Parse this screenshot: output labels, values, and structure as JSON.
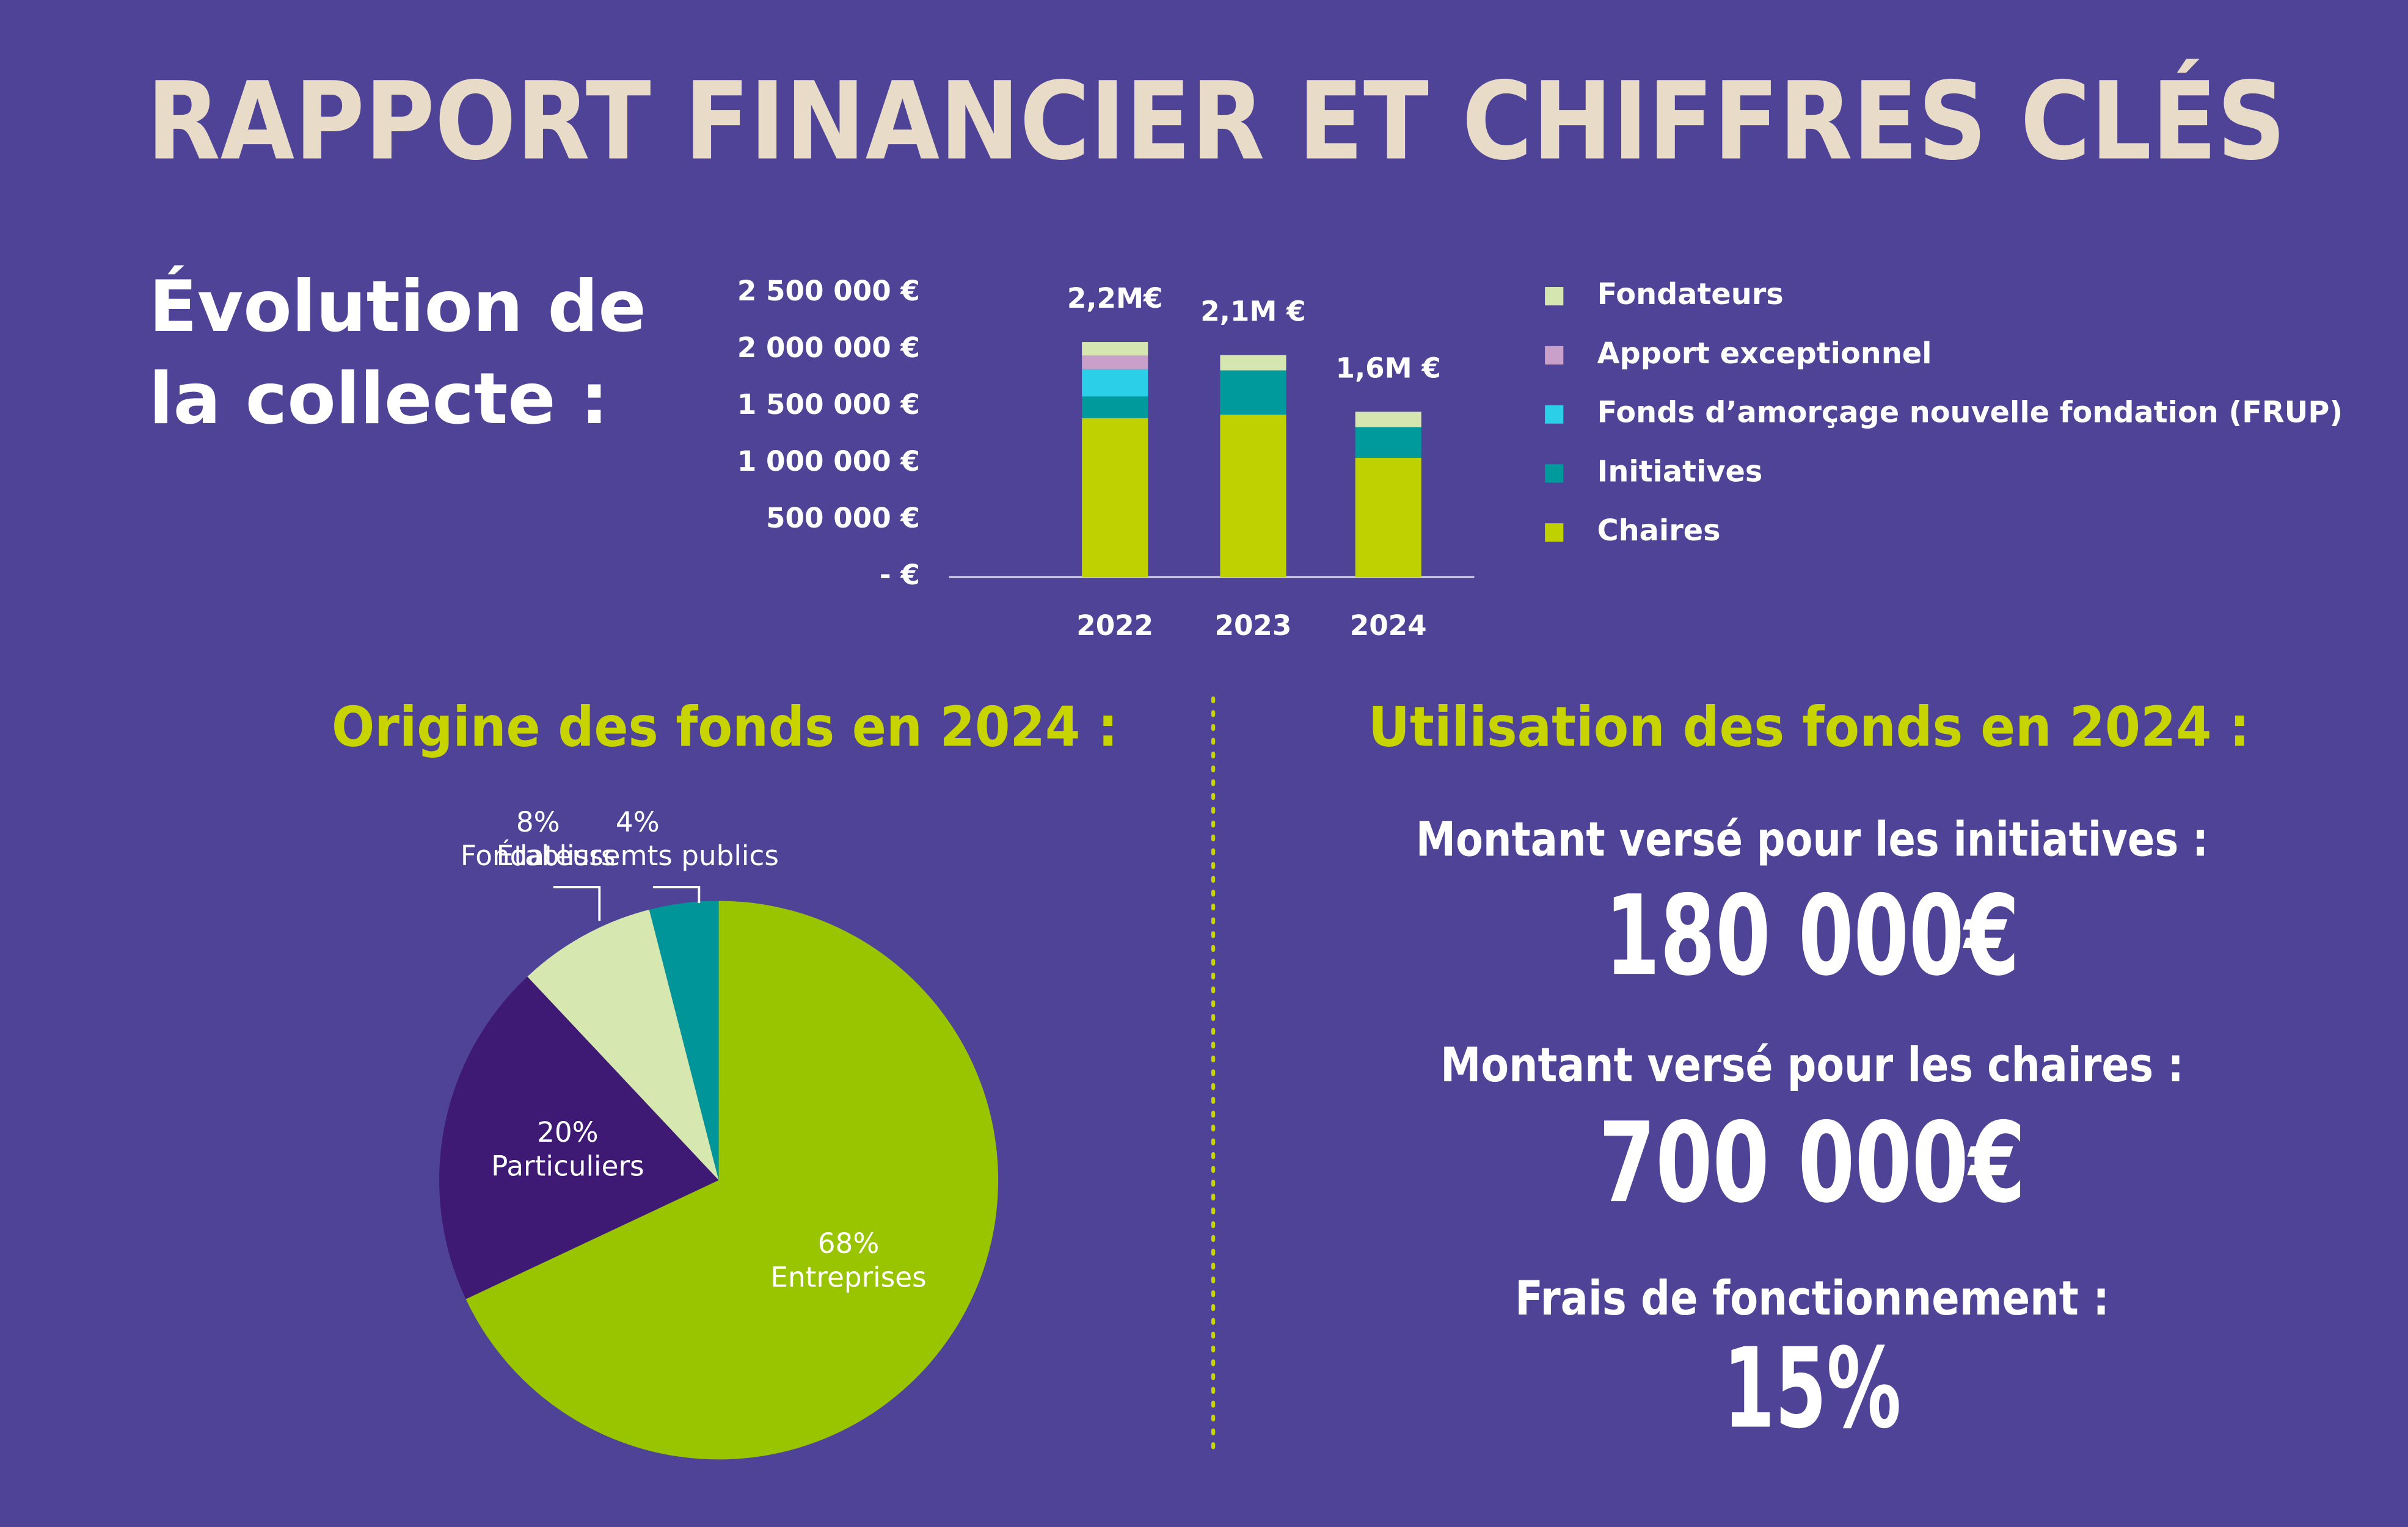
{
  "title": "RAPPORT FINANCIER ET CHIFFRES CLÉS",
  "chart_data": [
    {
      "type": "stacked-bar",
      "title": [
        "Évolution de",
        "la collecte :"
      ],
      "categories": [
        "2022",
        "2023",
        "2024"
      ],
      "series": [
        {
          "name": "Chaires",
          "color": "#bfd200",
          "values": [
            1400000,
            1430000,
            1050000
          ]
        },
        {
          "name": "Initiatives",
          "color": "#00999c",
          "values": [
            190000,
            390000,
            270000
          ]
        },
        {
          "name": "Fonds d’amorçage nouvelle fondation (FRUP)",
          "color": "#2bd0e8",
          "values": [
            240000,
            0,
            0
          ]
        },
        {
          "name": "Apport exceptionnel",
          "color": "#c9a0c9",
          "values": [
            120000,
            0,
            0
          ]
        },
        {
          "name": "Fondateurs",
          "color": "#d5e6b0",
          "values": [
            120000,
            135000,
            135000
          ]
        }
      ],
      "annotations": [
        "2,2M€",
        "2,1M €",
        "1,6M €"
      ],
      "ylim": [
        0,
        2500000
      ],
      "yticks": [
        {
          "value": 0,
          "label": "- €"
        },
        {
          "value": 500000,
          "label": "500 000 €"
        },
        {
          "value": 1000000,
          "label": "1 000 000 €"
        },
        {
          "value": 1500000,
          "label": "1 500 000 €"
        },
        {
          "value": 2000000,
          "label": "2 000 000 €"
        },
        {
          "value": 2500000,
          "label": "2 500 000 €"
        }
      ],
      "grid": false
    },
    {
      "type": "pie",
      "title": "Origine des fonds en 2024 :",
      "categories": [
        "Entreprises",
        "Particuliers",
        "Fondateurs",
        "Établissemts publics"
      ],
      "values": [
        68,
        20,
        8,
        4
      ],
      "value_labels": [
        "68%",
        "20%",
        "8%",
        "4%"
      ],
      "colors": [
        "#99c400",
        "#3f1a75",
        "#d6e8b0",
        "#009699"
      ]
    }
  ],
  "utilisation": {
    "title": "Utilisation des fonds en 2024 :",
    "items": [
      {
        "label": "Montant versé pour les initiatives :",
        "value": "180 000€"
      },
      {
        "label": "Montant versé pour les chaires :",
        "value": "700 000€"
      },
      {
        "label": "Frais de fonctionnement :",
        "value": "15%"
      }
    ]
  }
}
